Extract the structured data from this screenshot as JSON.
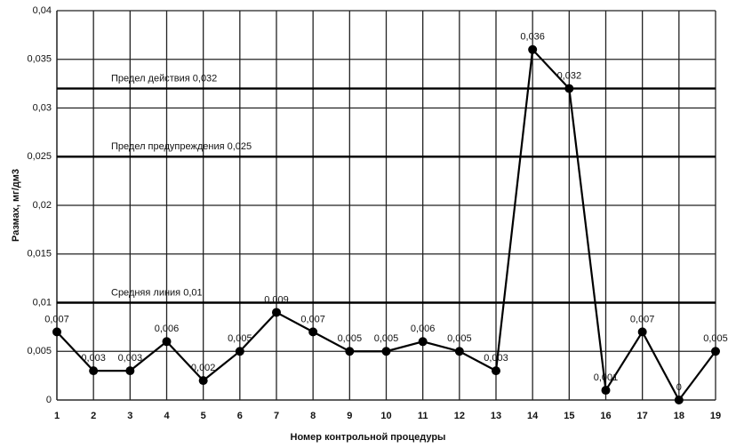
{
  "chart_data": {
    "type": "line",
    "x_label": "Номер контрольной процедуры",
    "y_label": "Размах, мг/дм3",
    "x": [
      1,
      2,
      3,
      4,
      5,
      6,
      7,
      8,
      9,
      10,
      11,
      12,
      13,
      14,
      15,
      16,
      17,
      18,
      19
    ],
    "xlim": [
      1,
      19
    ],
    "xticks": [
      1,
      2,
      3,
      4,
      5,
      6,
      7,
      8,
      9,
      10,
      11,
      12,
      13,
      14,
      15,
      16,
      17,
      18,
      19
    ],
    "ylim": [
      0,
      0.04
    ],
    "yticks": [
      0,
      {
        "value": 0.005,
        "label": "0,005"
      },
      {
        "value": 0.01,
        "label": "0,01"
      },
      {
        "value": 0.015,
        "label": "0,015"
      },
      {
        "value": 0.02,
        "label": "0,02"
      },
      {
        "value": 0.025,
        "label": "0,025"
      },
      {
        "value": 0.03,
        "label": "0,03"
      },
      {
        "value": 0.035,
        "label": "0,035"
      },
      {
        "value": 0.04,
        "label": "0,04"
      }
    ],
    "grid": true,
    "series": [
      {
        "color": "#000000",
        "values": [
          0.007,
          0.003,
          0.003,
          0.006,
          0.002,
          0.005,
          0.009,
          0.007,
          0.005,
          0.005,
          0.006,
          0.005,
          0.003,
          0.036,
          0.032,
          0.001,
          0.007,
          0,
          0.005
        ],
        "value_labels": [
          "0,007",
          "0,003",
          "0,003",
          "0,006",
          "0,002",
          "0,005",
          "0,009",
          "0,007",
          "0,005",
          "0,005",
          "0,006",
          "0,005",
          "0,003",
          "0,036",
          "0,032",
          "0,001",
          "0,007",
          "0",
          "0,005"
        ]
      }
    ],
    "reference_lines": [
      {
        "value": 0.032,
        "label": "Предел действия 0,032"
      },
      {
        "value": 0.025,
        "label": "Предел предупреждения 0,025"
      },
      {
        "value": 0.01,
        "label": "Средняя линия 0,01"
      }
    ]
  }
}
